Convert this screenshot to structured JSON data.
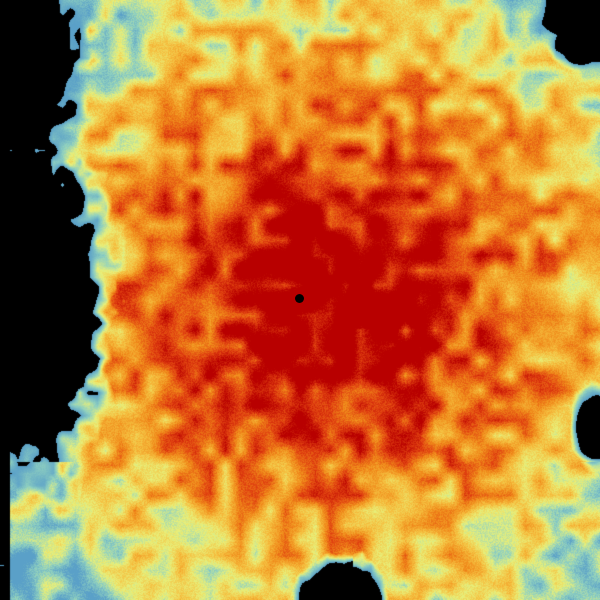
{
  "image": {
    "kind": "weather radar reflectivity composite",
    "background_color": "#000000",
    "palette": [
      "#5aa0c8",
      "#8fd0c0",
      "#e8f07a",
      "#f5c040",
      "#f08a1a",
      "#e04010",
      "#b80000"
    ],
    "radar_site_marker_color": "#000000"
  }
}
